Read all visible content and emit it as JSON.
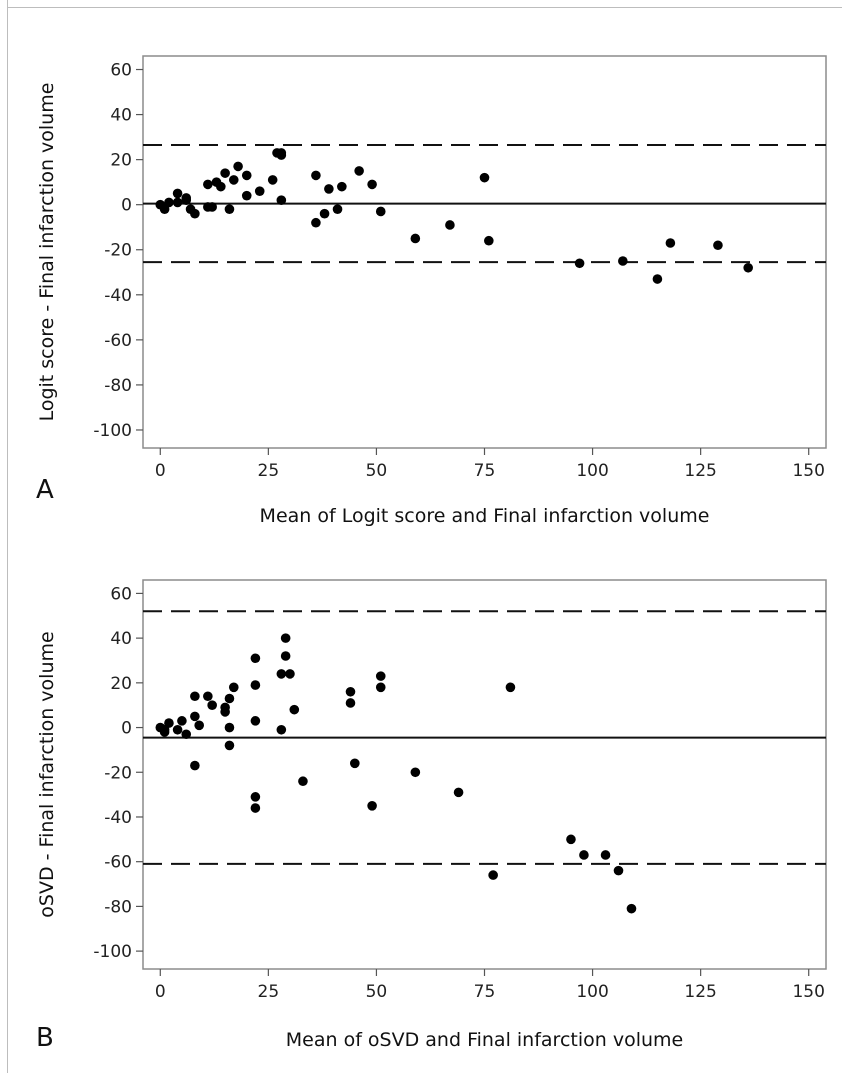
{
  "chart_data": [
    {
      "panel_label": "A",
      "type": "scatter",
      "xlabel": "Mean of Logit score and Final infarction volume",
      "ylabel": "Logit score - Final infarction volume",
      "xlim": [
        -4,
        154
      ],
      "ylim": [
        -108,
        66
      ],
      "xticks": [
        0,
        25,
        50,
        75,
        100,
        125,
        150
      ],
      "yticks": [
        60,
        40,
        20,
        0,
        -20,
        -40,
        -60,
        -80,
        -100
      ],
      "reference_lines": {
        "mean": 0.5,
        "upper_loa": 26.5,
        "lower_loa": -25.5
      },
      "points": [
        [
          0,
          0
        ],
        [
          1,
          -2
        ],
        [
          2,
          1
        ],
        [
          4,
          5
        ],
        [
          4,
          1
        ],
        [
          6,
          2
        ],
        [
          6,
          3
        ],
        [
          7,
          -2
        ],
        [
          8,
          -4
        ],
        [
          11,
          9
        ],
        [
          11,
          -1
        ],
        [
          12,
          -1
        ],
        [
          13,
          10
        ],
        [
          14,
          8
        ],
        [
          15,
          14
        ],
        [
          16,
          -2
        ],
        [
          17,
          11
        ],
        [
          18,
          17
        ],
        [
          20,
          4
        ],
        [
          20,
          13
        ],
        [
          23,
          6
        ],
        [
          26,
          11
        ],
        [
          27,
          23
        ],
        [
          28,
          23
        ],
        [
          28,
          22
        ],
        [
          28,
          2
        ],
        [
          36,
          13
        ],
        [
          36,
          -8
        ],
        [
          38,
          -4
        ],
        [
          39,
          7
        ],
        [
          41,
          -2
        ],
        [
          42,
          8
        ],
        [
          46,
          15
        ],
        [
          49,
          9
        ],
        [
          51,
          -3
        ],
        [
          59,
          -15
        ],
        [
          67,
          -9
        ],
        [
          75,
          12
        ],
        [
          76,
          -16
        ],
        [
          97,
          -26
        ],
        [
          107,
          -25
        ],
        [
          115,
          -33
        ],
        [
          118,
          -17
        ],
        [
          129,
          -18
        ],
        [
          136,
          -28
        ]
      ]
    },
    {
      "panel_label": "B",
      "type": "scatter",
      "xlabel": "Mean of oSVD and Final infarction volume",
      "ylabel": "oSVD - Final infarction volume",
      "xlim": [
        -4,
        154
      ],
      "ylim": [
        -108,
        66
      ],
      "xticks": [
        0,
        25,
        50,
        75,
        100,
        125,
        150
      ],
      "yticks": [
        60,
        40,
        20,
        0,
        -20,
        -40,
        -60,
        -80,
        -100
      ],
      "reference_lines": {
        "mean": -4.5,
        "upper_loa": 52,
        "lower_loa": -61
      },
      "points": [
        [
          0,
          0
        ],
        [
          1,
          -1
        ],
        [
          1,
          -2
        ],
        [
          2,
          2
        ],
        [
          4,
          -1
        ],
        [
          5,
          3
        ],
        [
          6,
          -3
        ],
        [
          8,
          5
        ],
        [
          8,
          -17
        ],
        [
          8,
          14
        ],
        [
          9,
          1
        ],
        [
          11,
          14
        ],
        [
          12,
          10
        ],
        [
          15,
          7
        ],
        [
          15,
          9
        ],
        [
          16,
          -8
        ],
        [
          16,
          13
        ],
        [
          16,
          0
        ],
        [
          17,
          18
        ],
        [
          22,
          31
        ],
        [
          22,
          19
        ],
        [
          22,
          -36
        ],
        [
          22,
          -31
        ],
        [
          22,
          3
        ],
        [
          28,
          24
        ],
        [
          28,
          -1
        ],
        [
          29,
          32
        ],
        [
          29,
          40
        ],
        [
          30,
          24
        ],
        [
          31,
          8
        ],
        [
          33,
          -24
        ],
        [
          44,
          16
        ],
        [
          44,
          11
        ],
        [
          45,
          -16
        ],
        [
          49,
          -35
        ],
        [
          51,
          18
        ],
        [
          51,
          23
        ],
        [
          59,
          -20
        ],
        [
          69,
          -29
        ],
        [
          77,
          -66
        ],
        [
          81,
          18
        ],
        [
          95,
          -50
        ],
        [
          98,
          -57
        ],
        [
          103,
          -57
        ],
        [
          106,
          -64
        ],
        [
          109,
          -81
        ]
      ]
    }
  ]
}
